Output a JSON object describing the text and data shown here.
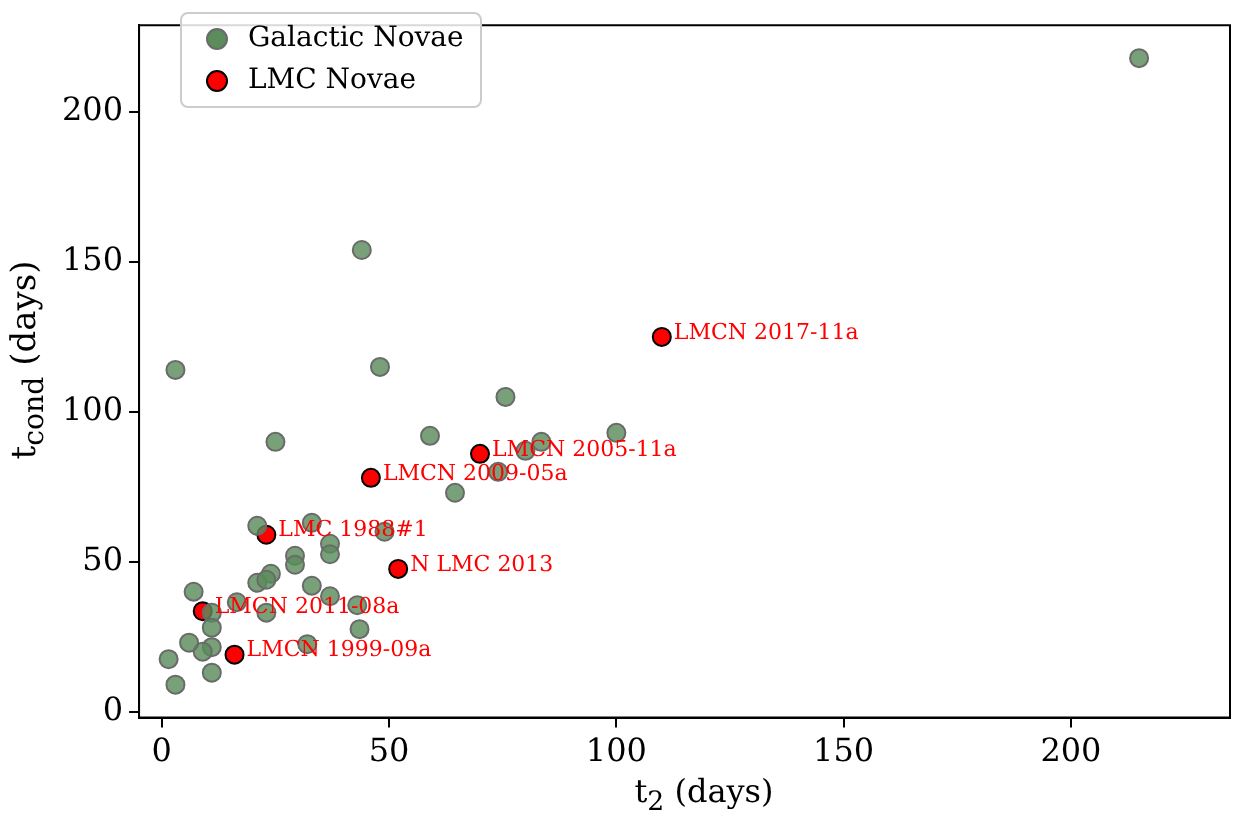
{
  "chart_data": {
    "type": "scatter",
    "xlabel": "t$_{2}$ (days)",
    "ylabel": "t$_{cond}$ (days)",
    "xlim": [
      -5,
      235
    ],
    "ylim": [
      -2,
      229
    ],
    "xticks": [
      0,
      50,
      100,
      150,
      200
    ],
    "yticks": [
      0,
      50,
      100,
      150,
      200
    ],
    "grid": false,
    "legend": "top left",
    "marker": "circle",
    "series": [
      {
        "name": "Galactic Novae",
        "color": "#5b8c5b",
        "x": [
          3,
          48,
          75.6,
          25,
          59,
          80,
          83.5,
          74,
          64.5,
          21,
          33,
          37,
          37,
          49,
          29.3,
          29.3,
          24,
          21,
          23,
          7,
          33,
          37,
          43,
          23,
          16.5,
          11,
          11,
          11,
          9,
          6,
          1.5,
          3,
          11,
          32,
          43.5,
          44,
          100,
          215
        ],
        "values": [
          114,
          115,
          105,
          90,
          92,
          87,
          90,
          80,
          73,
          62,
          63,
          56,
          52.5,
          60,
          52,
          49,
          46,
          43,
          44,
          40,
          42,
          38.5,
          35.5,
          33,
          36.5,
          33,
          28,
          21.5,
          20,
          23,
          17.5,
          9,
          13,
          22.5,
          27.5,
          154,
          93,
          218
        ]
      },
      {
        "name": "LMC Novae",
        "color": "#ff0000",
        "x": [
          16,
          9,
          23,
          52,
          46,
          70,
          110
        ],
        "values": [
          19,
          33.5,
          59,
          47.6,
          78,
          86,
          125
        ]
      }
    ],
    "annotations": [
      {
        "text": "LMCN 1999-09a",
        "x": 16,
        "y": 19
      },
      {
        "text": "LMCN 2011-08a",
        "x": 9,
        "y": 33.5
      },
      {
        "text": "LMC 1988#1",
        "x": 23,
        "y": 59
      },
      {
        "text": "N LMC 2013",
        "x": 52,
        "y": 47.6
      },
      {
        "text": "LMCN 2009-05a",
        "x": 46,
        "y": 78
      },
      {
        "text": "LMCN 2005-11a",
        "x": 70,
        "y": 86
      },
      {
        "text": "LMCN 2017-11a",
        "x": 110,
        "y": 125
      }
    ]
  }
}
